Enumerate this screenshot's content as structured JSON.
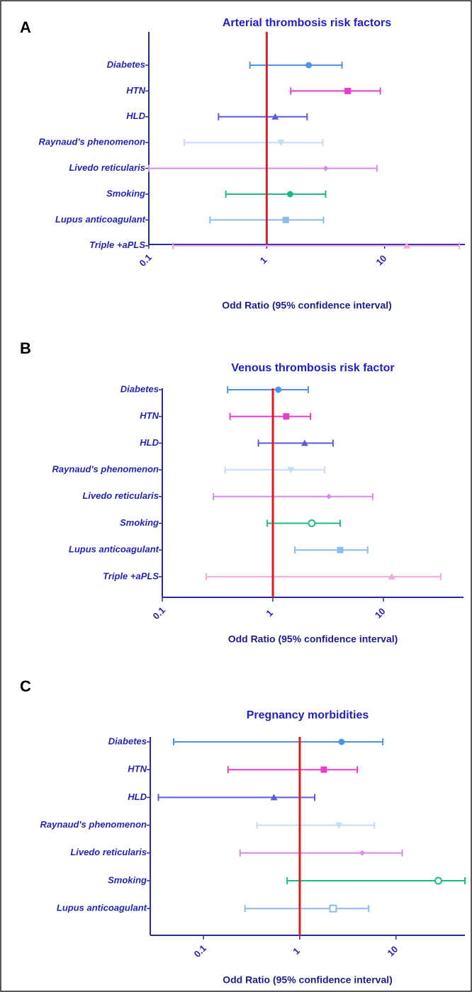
{
  "chart_data": [
    {
      "type": "forest",
      "panel": "A",
      "title": "Arterial thrombosis risk factors",
      "xlabel": "Odd Ratio (95% confidence interval)",
      "categories": [
        "Diabetes",
        "HTN",
        "HLD",
        "Raynaud's phenomenon",
        "Livedo reticularis",
        "Smoking",
        "Lupus anticoagulant",
        "Triple +aPLS"
      ],
      "values": [
        2.27,
        4.86,
        1.18,
        1.32,
        3.16,
        1.58,
        1.45,
        15.4
      ],
      "lower": [
        0.72,
        1.6,
        0.39,
        0.2,
        0.1,
        0.45,
        0.33,
        0.16
      ],
      "upper": [
        4.35,
        9.2,
        2.2,
        2.99,
        8.6,
        3.16,
        3.03,
        43
      ],
      "colors": [
        "#4d94e8",
        "#e83fc8",
        "#5b5be0",
        "#c4dcf5",
        "#d98ae8",
        "#1fb88a",
        "#8bbcf0",
        "#f5a8e0"
      ],
      "markers": [
        "circle",
        "square",
        "triangle",
        "triangle-down",
        "diamond",
        "circle",
        "square",
        "triangle"
      ],
      "xscale": "log",
      "xlim": [
        0.1,
        48
      ],
      "xticks": [
        0.1,
        1,
        10
      ],
      "ref_line": 1,
      "ref_color": "#e81818"
    },
    {
      "type": "forest",
      "panel": "B",
      "title": "Venous thrombosis risk factor",
      "xlabel": "Odd Ratio (95% confidence interval)",
      "categories": [
        "Diabetes",
        "HTN",
        "HLD",
        "Raynaud's phenomenon",
        "Livedo reticularis",
        "Smoking",
        "Lupus anticoagulant",
        "Triple +aPLS"
      ],
      "values": [
        1.12,
        1.32,
        1.94,
        1.45,
        3.21,
        2.25,
        4.06,
        11.9
      ],
      "lower": [
        0.39,
        0.41,
        0.74,
        0.37,
        0.29,
        0.89,
        1.58,
        0.25
      ],
      "upper": [
        2.09,
        2.19,
        3.5,
        2.94,
        8.0,
        4.06,
        7.2,
        33
      ],
      "colors": [
        "#4d94e8",
        "#e83fc8",
        "#5b5be0",
        "#c4dcf5",
        "#d98ae8",
        "#1fb88a",
        "#8bbcf0",
        "#f5a8e0"
      ],
      "markers": [
        "circle",
        "square",
        "triangle",
        "triangle-down",
        "diamond",
        "circle-open",
        "square",
        "triangle"
      ],
      "xscale": "log",
      "xlim": [
        0.1,
        53
      ],
      "xticks": [
        0.1,
        1,
        10
      ],
      "ref_line": 1,
      "ref_color": "#e81818"
    },
    {
      "type": "forest",
      "panel": "C",
      "title": "Pregnancy morbidities",
      "xlabel": "Odd Ratio (95% confidence interval)",
      "categories": [
        "Diabetes",
        "HTN",
        "HLD",
        "Raynaud's phenomenon",
        "Livedo reticularis",
        "Smoking",
        "Lupus anticoagulant"
      ],
      "values": [
        2.72,
        1.78,
        0.54,
        2.55,
        4.46,
        27.5,
        2.22
      ],
      "lower": [
        0.049,
        0.18,
        0.034,
        0.36,
        0.24,
        0.74,
        0.27
      ],
      "upper": [
        7.3,
        3.96,
        1.43,
        5.96,
        11.6,
        52,
        5.2
      ],
      "colors": [
        "#4d94e8",
        "#e83fc8",
        "#5b5be0",
        "#c4dcf5",
        "#d98ae8",
        "#1fb88a",
        "#8bbcf0"
      ],
      "markers": [
        "circle",
        "square",
        "triangle",
        "triangle-down",
        "diamond",
        "circle-open",
        "square-open"
      ],
      "xscale": "log",
      "xlim": [
        0.028,
        52
      ],
      "xticks": [
        0.1,
        1,
        10
      ],
      "ref_line": 1,
      "ref_color": "#e81818"
    }
  ]
}
